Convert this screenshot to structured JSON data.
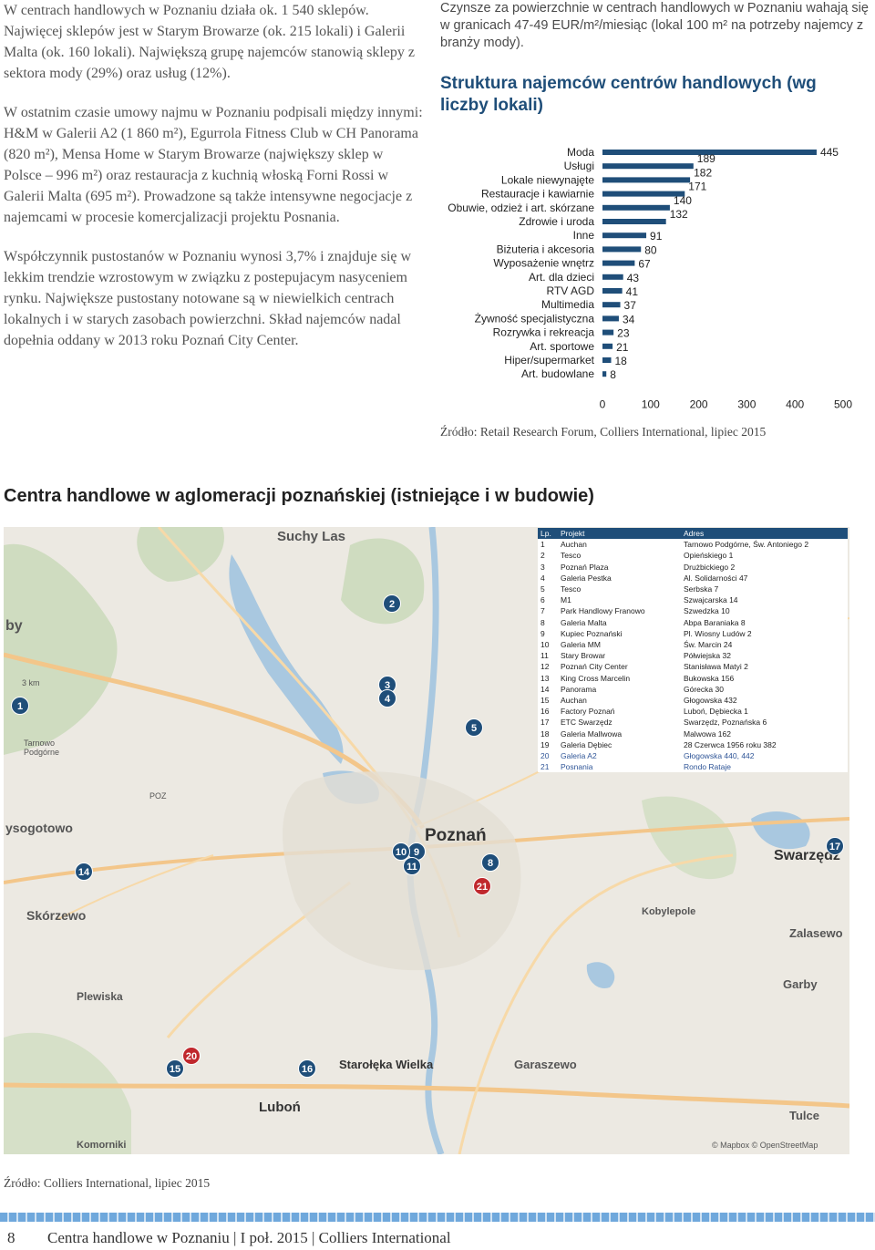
{
  "left_column": {
    "paragraphs": [
      "W centrach handlowych w Poznaniu działa ok. 1 540 sklepów. Najwięcej sklepów jest w Starym Browarze (ok. 215 lokali) i Galerii Malta (ok. 160 lokali). Największą grupę najemców stanowią sklepy z sektora mody (29%) oraz usług (12%).",
      "W ostatnim czasie umowy najmu w Poznaniu podpisali między innymi: H&M w Galerii A2 (1 860 m²), Egurrola Fitness Club w CH Panorama (820 m²), Mensa Home w Starym Browarze (największy sklep w Polsce – 996 m²) oraz restauracja z kuchnią włoską Forni Rossi w Galerii Malta (695 m²). Prowadzone są także intensywne negocjacje z najemcami w procesie komercjalizacji projektu Posnania.",
      "Współczynnik pustostanów w Poznaniu wynosi 3,7% i znajduje się w lekkim trendzie wzrostowym w związku z postepujacym nasyceniem rynku. Największe pustostany notowane są w niewielkich centrach lokalnych i w starych zasobach powierzchni. Skład najemców nadal dopełnia oddany w 2013 roku Poznań City Center."
    ]
  },
  "right_column": {
    "rent_text": "Czynsze za powierzchnie w centrach handlowych w Poznaniu wahają się w granicach 47-49 EUR/m²/miesiąc (lokal 100 m² na potrzeby najemcy z branży mody).",
    "chart_title": "Struktura najemców centrów handlowych (wg liczby lokali)",
    "chart_source": "Źródło: Retail Research Forum, Colliers International, lipiec 2015"
  },
  "chart_data": {
    "type": "bar",
    "orientation": "horizontal",
    "title": "Struktura najemców centrów handlowych (wg liczby lokali)",
    "categories": [
      "Moda",
      "Usługi",
      "Lokale niewynajęte",
      "Restauracje i kawiarnie",
      "Obuwie, odzież i art. skórzane",
      "Zdrowie i uroda",
      "Inne",
      "Biżuteria i akcesoria",
      "Wyposażenie wnętrz",
      "Art. dla dzieci",
      "RTV AGD",
      "Multimedia",
      "Żywność specjalistyczna",
      "Rozrywka i rekreacja",
      "Art. sportowe",
      "Hiper/supermarket",
      "Art. budowlane"
    ],
    "values": [
      445,
      189,
      182,
      171,
      140,
      132,
      91,
      80,
      67,
      43,
      41,
      37,
      34,
      23,
      21,
      18,
      8
    ],
    "xlim": [
      0,
      500
    ],
    "xticks": [
      0,
      100,
      200,
      300,
      400,
      500
    ],
    "bar_color": "#1f4e79",
    "grid": false
  },
  "map_section": {
    "title": "Centra handlowe w aglomeracji poznańskiej (istniejące i w budowie)",
    "source": "Źródło: Colliers International, lipiec 2015",
    "attribution": "© Mapbox © OpenStreetMap",
    "place_labels": {
      "suchy_las": "Suchy Las",
      "by": "by",
      "tarnowo": "Tarnowo Podgórne",
      "poz": "POZ",
      "sogotowo": "ysogotowo",
      "poznan": "Poznań",
      "skorzewo": "Skórzewo",
      "swarzedz": "Swarzędz",
      "kobylepole": "Kobylepole",
      "zalasewo": "Zalasewo",
      "garby": "Garby",
      "plewiska": "Plewiska",
      "starolecka": "Starołęka Wielka",
      "garaszewo": "Garaszewo",
      "lubon": "Luboń",
      "tulce": "Tulce",
      "komorniki": "Komorniki",
      "km3": "3 km"
    },
    "legend": {
      "headers": [
        "Lp.",
        "Projekt",
        "Adres"
      ],
      "rows": [
        [
          "1",
          "Auchan",
          "Tarnowo Podgórne, Św. Antoniego 2"
        ],
        [
          "2",
          "Tesco",
          "Opieńskiego 1"
        ],
        [
          "3",
          "Poznań Plaza",
          "Drużbickiego 2"
        ],
        [
          "4",
          "Galeria Pestka",
          "Al. Solidarności 47"
        ],
        [
          "5",
          "Tesco",
          "Serbska 7"
        ],
        [
          "6",
          "M1",
          "Szwajcarska 14"
        ],
        [
          "7",
          "Park Handlowy Franowo",
          "Szwedzka 10"
        ],
        [
          "8",
          "Galeria Malta",
          "Abpa Baraniaka 8"
        ],
        [
          "9",
          "Kupiec Poznański",
          "Pl. Wiosny Ludów 2"
        ],
        [
          "10",
          "Galeria MM",
          "Św. Marcin 24"
        ],
        [
          "11",
          "Stary Browar",
          "Półwiejska 32"
        ],
        [
          "12",
          "Poznań City Center",
          "Stanisława Matyi 2"
        ],
        [
          "13",
          "King Cross Marcelin",
          "Bukowska 156"
        ],
        [
          "14",
          "Panorama",
          "Górecka 30"
        ],
        [
          "15",
          "Auchan",
          "Głogowska 432"
        ],
        [
          "16",
          "Factory Poznań",
          "Luboń, Dębiecka 1"
        ],
        [
          "17",
          "ETC Swarzędz",
          "Swarzędz, Poznańska 6"
        ],
        [
          "18",
          "Galeria Mallwowa",
          "Malwowa 162"
        ],
        [
          "19",
          "Galeria Dębiec",
          "28 Czerwca 1956 roku 382"
        ],
        [
          "20",
          "Galeria A2",
          "Głogowska 440, 442"
        ],
        [
          "21",
          "Posnania",
          "Rondo Rataje"
        ]
      ]
    },
    "pins": {
      "p1": "1",
      "p2": "2",
      "p3": "3",
      "p4": "4",
      "p5": "5",
      "p8": "8",
      "p9": "9",
      "p10": "10",
      "p11": "11",
      "p14": "14",
      "p15": "15",
      "p16": "16",
      "p17": "17",
      "p20": "20",
      "p21": "21"
    }
  },
  "footer": {
    "page_number": "8",
    "text": "Centra handlowe w Poznaniu | I poł. 2015 | Colliers International"
  }
}
